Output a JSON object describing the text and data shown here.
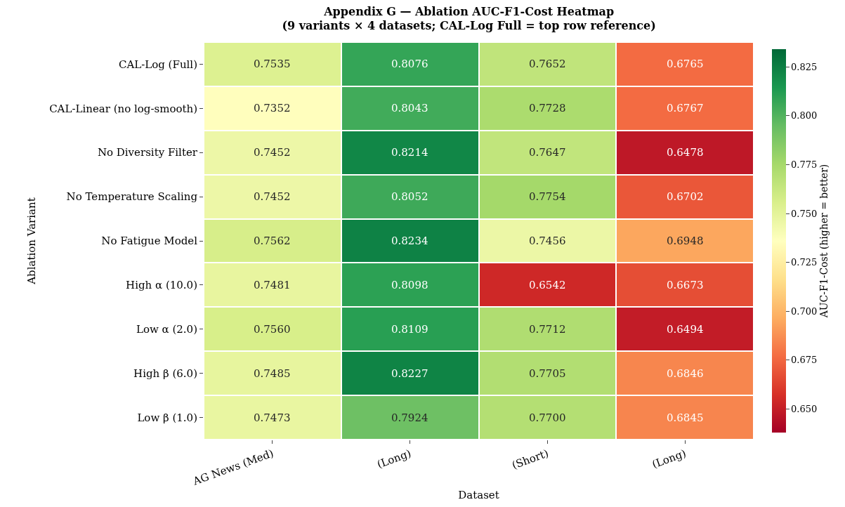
{
  "chart_data": {
    "type": "heatmap",
    "title": "Appendix G — Ablation AUC-F1-Cost Heatmap\n(9 variants × 4 datasets; CAL-Log Full = top row reference)",
    "xlabel": "Dataset",
    "ylabel": "Ablation Variant",
    "clabel": "AUC-F1-Cost (higher = better)",
    "categories": [
      "AG News (Med)",
      "(Long)",
      "(Short)",
      "(Long)"
    ],
    "y_categories": [
      "CAL-Log (Full)",
      "CAL-Linear (no log-smooth)",
      "No Diversity Filter",
      "No Temperature Scaling",
      "No Fatigue Model",
      "High α (10.0)",
      "Low α (2.0)",
      "High β (6.0)",
      "Low β (1.0)"
    ],
    "cells": [
      [
        0.7535,
        0.8076,
        0.7652,
        0.6765
      ],
      [
        0.7352,
        0.8043,
        0.7728,
        0.6767
      ],
      [
        0.7452,
        0.8214,
        0.7647,
        0.6478
      ],
      [
        0.7452,
        0.8052,
        0.7754,
        0.6702
      ],
      [
        0.7562,
        0.8234,
        0.7456,
        0.6948
      ],
      [
        0.7481,
        0.8098,
        0.6542,
        0.6673
      ],
      [
        0.756,
        0.8109,
        0.7712,
        0.6494
      ],
      [
        0.7485,
        0.8227,
        0.7705,
        0.6846
      ],
      [
        0.7473,
        0.7924,
        0.77,
        0.6845
      ]
    ],
    "cell_labels": [
      [
        "0.7535",
        "0.8076",
        "0.7652",
        "0.6765"
      ],
      [
        "0.7352",
        "0.8043",
        "0.7728",
        "0.6767"
      ],
      [
        "0.7452",
        "0.8214",
        "0.7647",
        "0.6478"
      ],
      [
        "0.7452",
        "0.8052",
        "0.7754",
        "0.6702"
      ],
      [
        "0.7562",
        "0.8234",
        "0.7456",
        "0.6948"
      ],
      [
        "0.7481",
        "0.8098",
        "0.6542",
        "0.6673"
      ],
      [
        "0.7560",
        "0.8109",
        "0.7712",
        "0.6494"
      ],
      [
        "0.7485",
        "0.8227",
        "0.7705",
        "0.6846"
      ],
      [
        "0.7473",
        "0.7924",
        "0.7700",
        "0.6845"
      ]
    ],
    "clim": [
      0.638,
      0.834
    ],
    "cticks": [
      {
        "value": 0.65,
        "label": "0.650"
      },
      {
        "value": 0.675,
        "label": "0.675"
      },
      {
        "value": 0.7,
        "label": "0.700"
      },
      {
        "value": 0.725,
        "label": "0.725"
      },
      {
        "value": 0.75,
        "label": "0.750"
      },
      {
        "value": 0.775,
        "label": "0.775"
      },
      {
        "value": 0.8,
        "label": "0.800"
      },
      {
        "value": 0.825,
        "label": "0.825"
      }
    ]
  }
}
